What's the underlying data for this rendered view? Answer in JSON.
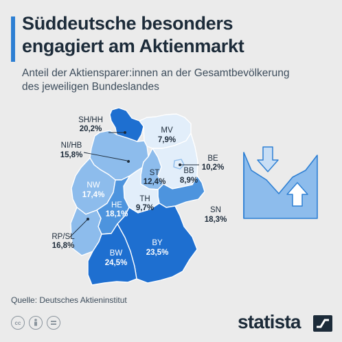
{
  "title_lines": [
    "Süddeutsche besonders",
    "engagiert am Aktienmarkt"
  ],
  "subtitle_lines": [
    "Anteil der Aktiensparer:innen an der Gesamtbevölkerung",
    "des jeweiligen Bundeslandes"
  ],
  "chart_data": {
    "type": "choropleth",
    "regions": [
      {
        "label": "SH/HH",
        "value": "20,2%",
        "share": 20.2
      },
      {
        "label": "MV",
        "value": "7,9%",
        "share": 7.9
      },
      {
        "label": "NI/HB",
        "value": "15,8%",
        "share": 15.8
      },
      {
        "label": "BE",
        "value": "10,2%",
        "share": 10.2
      },
      {
        "label": "ST",
        "value": "12,4%",
        "share": 12.4
      },
      {
        "label": "BB",
        "value": "8,9%",
        "share": 8.9
      },
      {
        "label": "NW",
        "value": "17,4%",
        "share": 17.4
      },
      {
        "label": "TH",
        "value": "9,7%",
        "share": 9.7
      },
      {
        "label": "HE",
        "value": "18,1%",
        "share": 18.1
      },
      {
        "label": "SN",
        "value": "18,3%",
        "share": 18.3
      },
      {
        "label": "RP/SL",
        "value": "16,8%",
        "share": 16.8
      },
      {
        "label": "BY",
        "value": "23,5%",
        "share": 23.5
      },
      {
        "label": "BW",
        "value": "24,5%",
        "share": 24.5
      }
    ],
    "colors": {
      "darkest": "#1e6fd0",
      "dark": "#4d94de",
      "medium": "#8dbcec",
      "light": "#c8def5",
      "lightest": "#e2eefa"
    }
  },
  "source": "Quelle: Deutsches Aktieninstitut",
  "brand": "statista",
  "icons": [
    "chart-arrows-icon",
    "cc-icon",
    "by-icon",
    "nd-icon",
    "statista-logo-icon"
  ]
}
